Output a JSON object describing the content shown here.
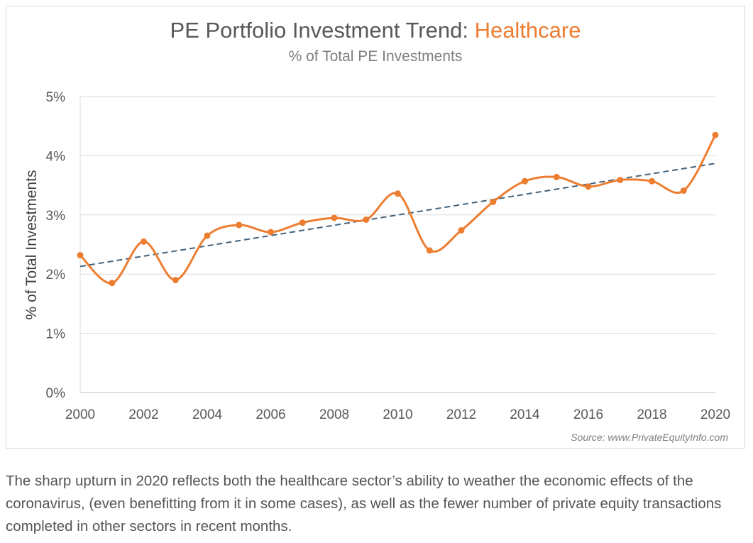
{
  "chart_data": {
    "type": "line",
    "title": "PE Portfolio Investment Trend: ",
    "title_highlight": "Healthcare",
    "subtitle": "% of Total PE Investments",
    "xlabel": "",
    "ylabel": "% of Total Investments",
    "ylim": [
      0,
      5
    ],
    "yticks": [
      0,
      1,
      2,
      3,
      4,
      5
    ],
    "ytick_labels": [
      "0%",
      "1%",
      "2%",
      "3%",
      "4%",
      "5%"
    ],
    "xlim": [
      2000,
      2020
    ],
    "xticks": [
      2000,
      2002,
      2004,
      2006,
      2008,
      2010,
      2012,
      2014,
      2016,
      2018,
      2020
    ],
    "xtick_labels": [
      "2000",
      "2002",
      "2004",
      "2006",
      "2008",
      "2010",
      "2012",
      "2014",
      "2016",
      "2018",
      "2020"
    ],
    "grid": true,
    "series": [
      {
        "name": "Healthcare",
        "x": [
          2000,
          2001,
          2002,
          2003,
          2004,
          2005,
          2006,
          2007,
          2008,
          2009,
          2010,
          2011,
          2012,
          2013,
          2014,
          2015,
          2016,
          2017,
          2018,
          2019,
          2020
        ],
        "values": [
          2.32,
          1.85,
          2.55,
          1.9,
          2.65,
          2.83,
          2.71,
          2.87,
          2.95,
          2.92,
          3.36,
          2.4,
          2.74,
          3.22,
          3.57,
          3.64,
          3.48,
          3.59,
          3.57,
          3.41,
          4.35
        ]
      },
      {
        "name": "Linear trend",
        "style": "dashed",
        "x": [
          2000,
          2020
        ],
        "values": [
          2.13,
          3.87
        ]
      }
    ],
    "source": "Source: www.PrivateEquityInfo.com"
  },
  "colors": {
    "series": "#ED7D31",
    "trend": "#44627C",
    "title": "#595959",
    "highlight": "#ED7D31",
    "grid": "#D9D9D9",
    "axis_text": "#595959"
  },
  "caption": "The sharp upturn in 2020 reflects both the healthcare sector’s ability to weather the economic effects of the coronavirus, (even benefitting from it in some cases), as well as the fewer number of private equity transactions completed in other sectors in recent months."
}
